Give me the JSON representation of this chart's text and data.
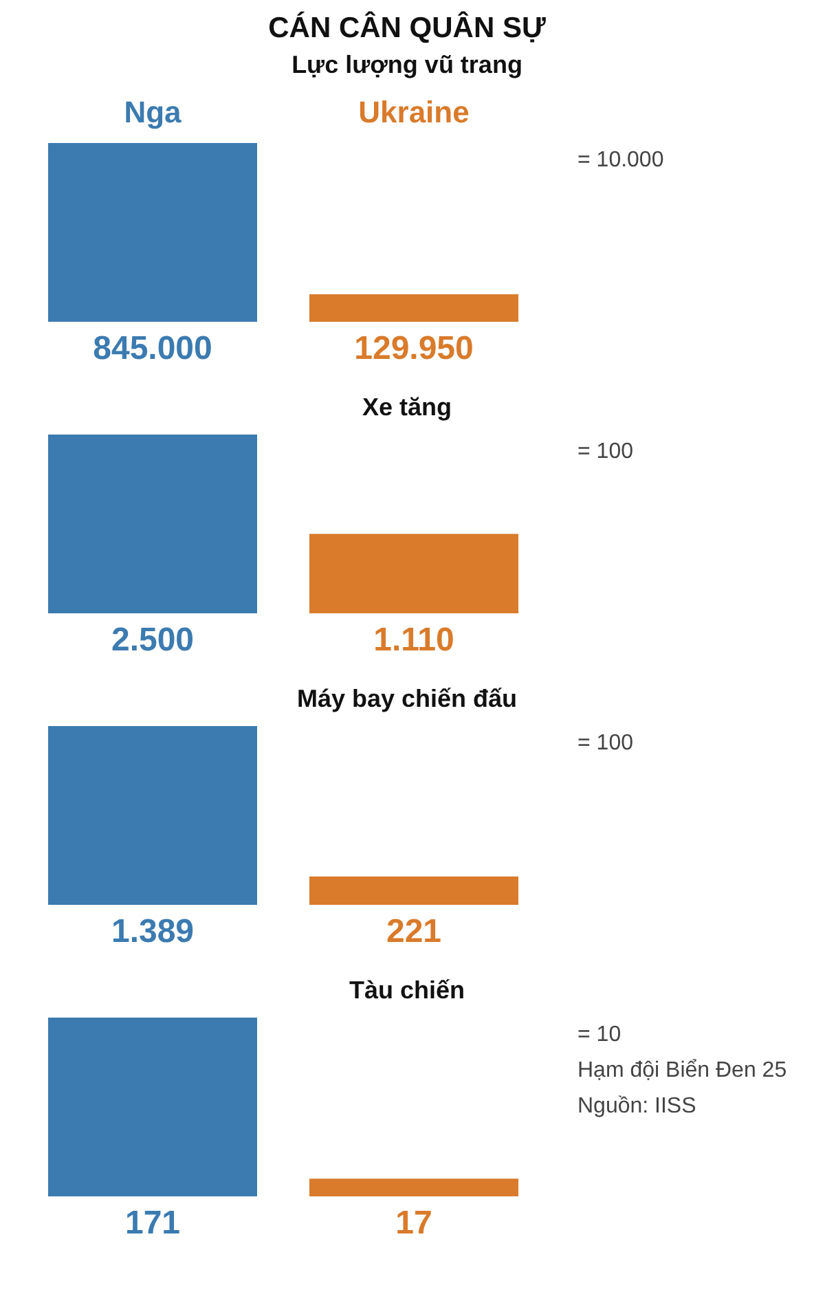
{
  "chart_data": [
    {
      "type": "bar",
      "title": "CÁN CÂN QUÂN SỰ",
      "subtitle": "Lực lượng vũ trang",
      "categories": [
        "Nga",
        "Ukraine"
      ],
      "values": [
        845000,
        129950
      ],
      "colors": [
        "#3b7bb0",
        "#d97b2b"
      ],
      "value_labels": [
        "845.000",
        "129.950"
      ],
      "annotations": [
        "= 10.000"
      ]
    },
    {
      "type": "bar",
      "title": "Xe tăng",
      "categories": [
        null,
        null
      ],
      "values": [
        2500,
        1110
      ],
      "colors": [
        "#3b7bb0",
        "#d97b2b"
      ],
      "value_labels": [
        "2.500",
        "1.110"
      ],
      "annotations": [
        "= 100"
      ]
    },
    {
      "type": "bar",
      "title": "Máy bay chiến đấu",
      "categories": [
        null,
        null
      ],
      "values": [
        1389,
        221
      ],
      "colors": [
        "#3b7bb0",
        "#d97b2b"
      ],
      "value_labels": [
        "1.389",
        "221"
      ],
      "annotations": [
        "= 100"
      ]
    },
    {
      "type": "bar",
      "title": "Tàu chiến",
      "categories": [
        null,
        null
      ],
      "values": [
        171,
        17
      ],
      "colors": [
        "#3b7bb0",
        "#d97b2b"
      ],
      "value_labels": [
        "171",
        "17"
      ],
      "annotations": [
        "= 10",
        "Hạm đội Biển Đen 25",
        "Nguồn: IISS"
      ]
    }
  ]
}
